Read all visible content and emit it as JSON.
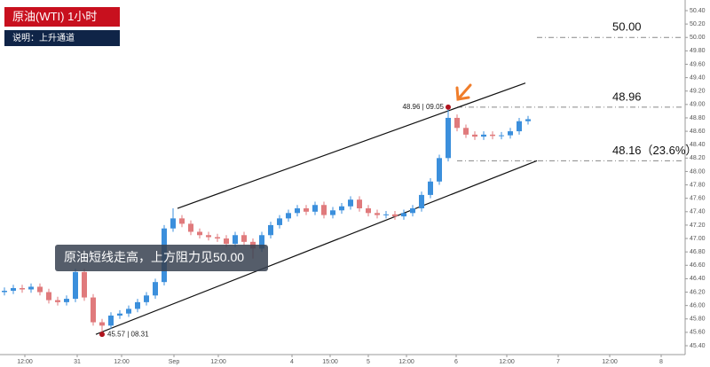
{
  "chart_data": {
    "type": "candlestick",
    "title": "原油(WTI)  1小时",
    "subtitle": "说明：上升通道",
    "annotation": "原油短线走高，上方阻力见50.00",
    "up_color": "#3b8fdc",
    "down_color": "#e07a7c",
    "grid": false,
    "xlim": [
      0,
      154
    ],
    "xticks": [
      {
        "value": 5.6,
        "label": "12:00"
      },
      {
        "value": 17.4,
        "label": "31"
      },
      {
        "value": 27.4,
        "label": "12:00"
      },
      {
        "value": 39.2,
        "label": "Sep"
      },
      {
        "value": 49.2,
        "label": "12:00"
      },
      {
        "value": 65.8,
        "label": "4"
      },
      {
        "value": 74.4,
        "label": "15:00"
      },
      {
        "value": 83,
        "label": "5"
      },
      {
        "value": 91.6,
        "label": "12:00"
      },
      {
        "value": 102.8,
        "label": "6"
      },
      {
        "value": 114.2,
        "label": "12:00"
      },
      {
        "value": 125.8,
        "label": "7"
      },
      {
        "value": 137.4,
        "label": "12:00"
      },
      {
        "value": 149,
        "label": "8"
      }
    ],
    "ylim": [
      45.4,
      50.4
    ],
    "yticks": [
      {
        "value": 45.4,
        "label": "45.40"
      },
      {
        "value": 45.6,
        "label": "45.60"
      },
      {
        "value": 45.8,
        "label": "45.80"
      },
      {
        "value": 46.0,
        "label": "46.00"
      },
      {
        "value": 46.2,
        "label": "46.20"
      },
      {
        "value": 46.4,
        "label": "46.40"
      },
      {
        "value": 46.6,
        "label": "46.60"
      },
      {
        "value": 46.8,
        "label": "46.80"
      },
      {
        "value": 47.0,
        "label": "47.00"
      },
      {
        "value": 47.2,
        "label": "47.20"
      },
      {
        "value": 47.4,
        "label": "47.40"
      },
      {
        "value": 47.6,
        "label": "47.60"
      },
      {
        "value": 47.8,
        "label": "47.80"
      },
      {
        "value": 48.0,
        "label": "48.00"
      },
      {
        "value": 48.2,
        "label": "48.20"
      },
      {
        "value": 48.4,
        "label": "48.40"
      },
      {
        "value": 48.6,
        "label": "48.60"
      },
      {
        "value": 48.8,
        "label": "48.80"
      },
      {
        "value": 49.0,
        "label": "49.00"
      },
      {
        "value": 49.2,
        "label": "49.20"
      },
      {
        "value": 49.4,
        "label": "49.40"
      },
      {
        "value": 49.6,
        "label": "49.60"
      },
      {
        "value": 49.8,
        "label": "49.80"
      },
      {
        "value": 50.0,
        "label": "50.00"
      },
      {
        "value": 50.2,
        "label": "50.20"
      },
      {
        "value": 50.4,
        "label": "50.40"
      }
    ],
    "x": [
      1,
      3,
      5,
      7,
      9,
      11,
      13,
      15,
      17,
      19,
      21,
      23,
      25,
      27,
      29,
      31,
      33,
      35,
      37,
      39,
      41,
      43,
      45,
      47,
      49,
      51,
      53,
      55,
      57,
      59,
      61,
      63,
      65,
      67,
      69,
      71,
      73,
      75,
      77,
      79,
      81,
      83,
      85,
      87,
      89,
      91,
      93,
      95,
      97,
      99,
      101,
      103,
      105,
      107,
      109,
      111,
      113,
      115,
      117,
      119
    ],
    "open": [
      46.2,
      46.22,
      46.26,
      46.24,
      46.28,
      46.2,
      46.08,
      46.05,
      46.1,
      46.5,
      46.12,
      45.75,
      45.7,
      45.85,
      45.88,
      45.95,
      46.05,
      46.15,
      46.35,
      47.15,
      47.3,
      47.22,
      47.1,
      47.05,
      47.02,
      47.0,
      46.92,
      47.05,
      46.95,
      46.85,
      47.05,
      47.2,
      47.3,
      47.38,
      47.45,
      47.4,
      47.5,
      47.35,
      47.42,
      47.48,
      47.58,
      47.45,
      47.38,
      47.35,
      47.36,
      47.33,
      47.38,
      47.45,
      47.65,
      47.85,
      48.2,
      48.8,
      48.65,
      48.55,
      48.52,
      48.55,
      48.53,
      48.54,
      48.6,
      48.75
    ],
    "high": [
      46.27,
      46.31,
      46.31,
      46.33,
      46.33,
      46.25,
      46.13,
      46.15,
      46.55,
      46.55,
      46.17,
      45.8,
      45.9,
      45.93,
      46.0,
      46.1,
      46.2,
      46.4,
      47.2,
      47.45,
      47.35,
      47.27,
      47.15,
      47.1,
      47.07,
      47.05,
      47.1,
      47.1,
      47.0,
      47.1,
      47.25,
      47.35,
      47.43,
      47.5,
      47.5,
      47.55,
      47.55,
      47.47,
      47.53,
      47.63,
      47.63,
      47.5,
      47.43,
      47.41,
      47.41,
      47.43,
      47.5,
      47.7,
      47.9,
      48.25,
      48.96,
      48.85,
      48.7,
      48.6,
      48.6,
      48.6,
      48.59,
      48.65,
      48.8,
      48.83
    ],
    "low": [
      46.15,
      46.17,
      46.19,
      46.19,
      46.15,
      46.03,
      46.0,
      46.0,
      46.05,
      46.07,
      45.7,
      45.57,
      45.65,
      45.8,
      45.83,
      45.9,
      46.0,
      46.1,
      46.3,
      47.1,
      47.17,
      47.05,
      47.0,
      46.97,
      46.95,
      46.87,
      46.87,
      46.9,
      46.7,
      46.8,
      47.0,
      47.15,
      47.25,
      47.33,
      47.35,
      47.35,
      47.3,
      47.3,
      47.37,
      47.43,
      47.4,
      47.33,
      47.3,
      47.3,
      47.28,
      47.28,
      47.33,
      47.4,
      47.6,
      47.8,
      48.15,
      48.6,
      48.5,
      48.47,
      48.47,
      48.48,
      48.48,
      48.49,
      48.55,
      48.7
    ],
    "close": [
      46.22,
      46.26,
      46.24,
      46.28,
      46.2,
      46.08,
      46.05,
      46.1,
      46.5,
      46.12,
      45.75,
      45.7,
      45.85,
      45.88,
      45.95,
      46.05,
      46.15,
      46.35,
      47.15,
      47.3,
      47.22,
      47.1,
      47.05,
      47.02,
      47.0,
      46.92,
      47.05,
      46.95,
      46.85,
      47.05,
      47.2,
      47.3,
      47.38,
      47.45,
      47.4,
      47.5,
      47.35,
      47.42,
      47.48,
      47.58,
      47.45,
      47.38,
      47.35,
      47.36,
      47.33,
      47.38,
      47.45,
      47.65,
      47.85,
      48.2,
      48.8,
      48.65,
      48.55,
      48.52,
      48.55,
      48.53,
      48.54,
      48.6,
      48.75,
      48.78
    ],
    "channel": [
      {
        "x": [
          40,
          118.4
        ],
        "y": [
          47.45,
          49.32
        ]
      },
      {
        "x": [
          21.6,
          121
        ],
        "y": [
          45.57,
          48.16
        ]
      }
    ],
    "levels": [
      {
        "value": 50.0,
        "label": "50.00"
      },
      {
        "value": 48.96,
        "label": "48.96"
      },
      {
        "value": 48.16,
        "label": "48.16（23.6%）"
      }
    ],
    "points": [
      {
        "x": 101,
        "y": 48.96,
        "label": "48.96 | 09.05"
      },
      {
        "x": 23,
        "y": 45.57,
        "label": "45.57 | 08.31"
      }
    ]
  }
}
